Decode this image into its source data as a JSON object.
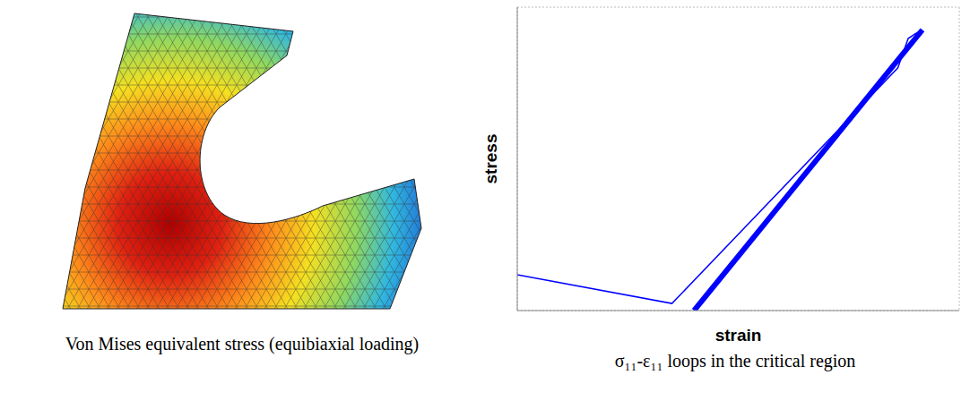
{
  "figure": {
    "left_caption": "Von Mises equivalent stress (equibiaxial loading)",
    "right_caption": "σ₁₁-ε₁₁ loops in the critical region"
  },
  "chart_data": {
    "type": "line",
    "x_label": "strain",
    "y_label": "stress",
    "xlim": [
      0,
      9
    ],
    "xticks": [
      0,
      1,
      2,
      3,
      4,
      5,
      6,
      7,
      8,
      9
    ],
    "ylim": [
      0,
      6
    ],
    "yticks": [
      0,
      1,
      2,
      3,
      4,
      5,
      6
    ],
    "grid": true,
    "tick_labels": false,
    "series": [
      {
        "color": "#0000ff",
        "x": [
          0,
          3.15,
          7.75,
          7.96,
          8.1,
          8.25
        ],
        "values": [
          0.71,
          0.14,
          4.8,
          5.38,
          5.47,
          5.55
        ]
      },
      {
        "color": "#0000ff",
        "x": [
          3.6,
          8.25
        ],
        "values": [
          0,
          5.55
        ]
      }
    ]
  }
}
